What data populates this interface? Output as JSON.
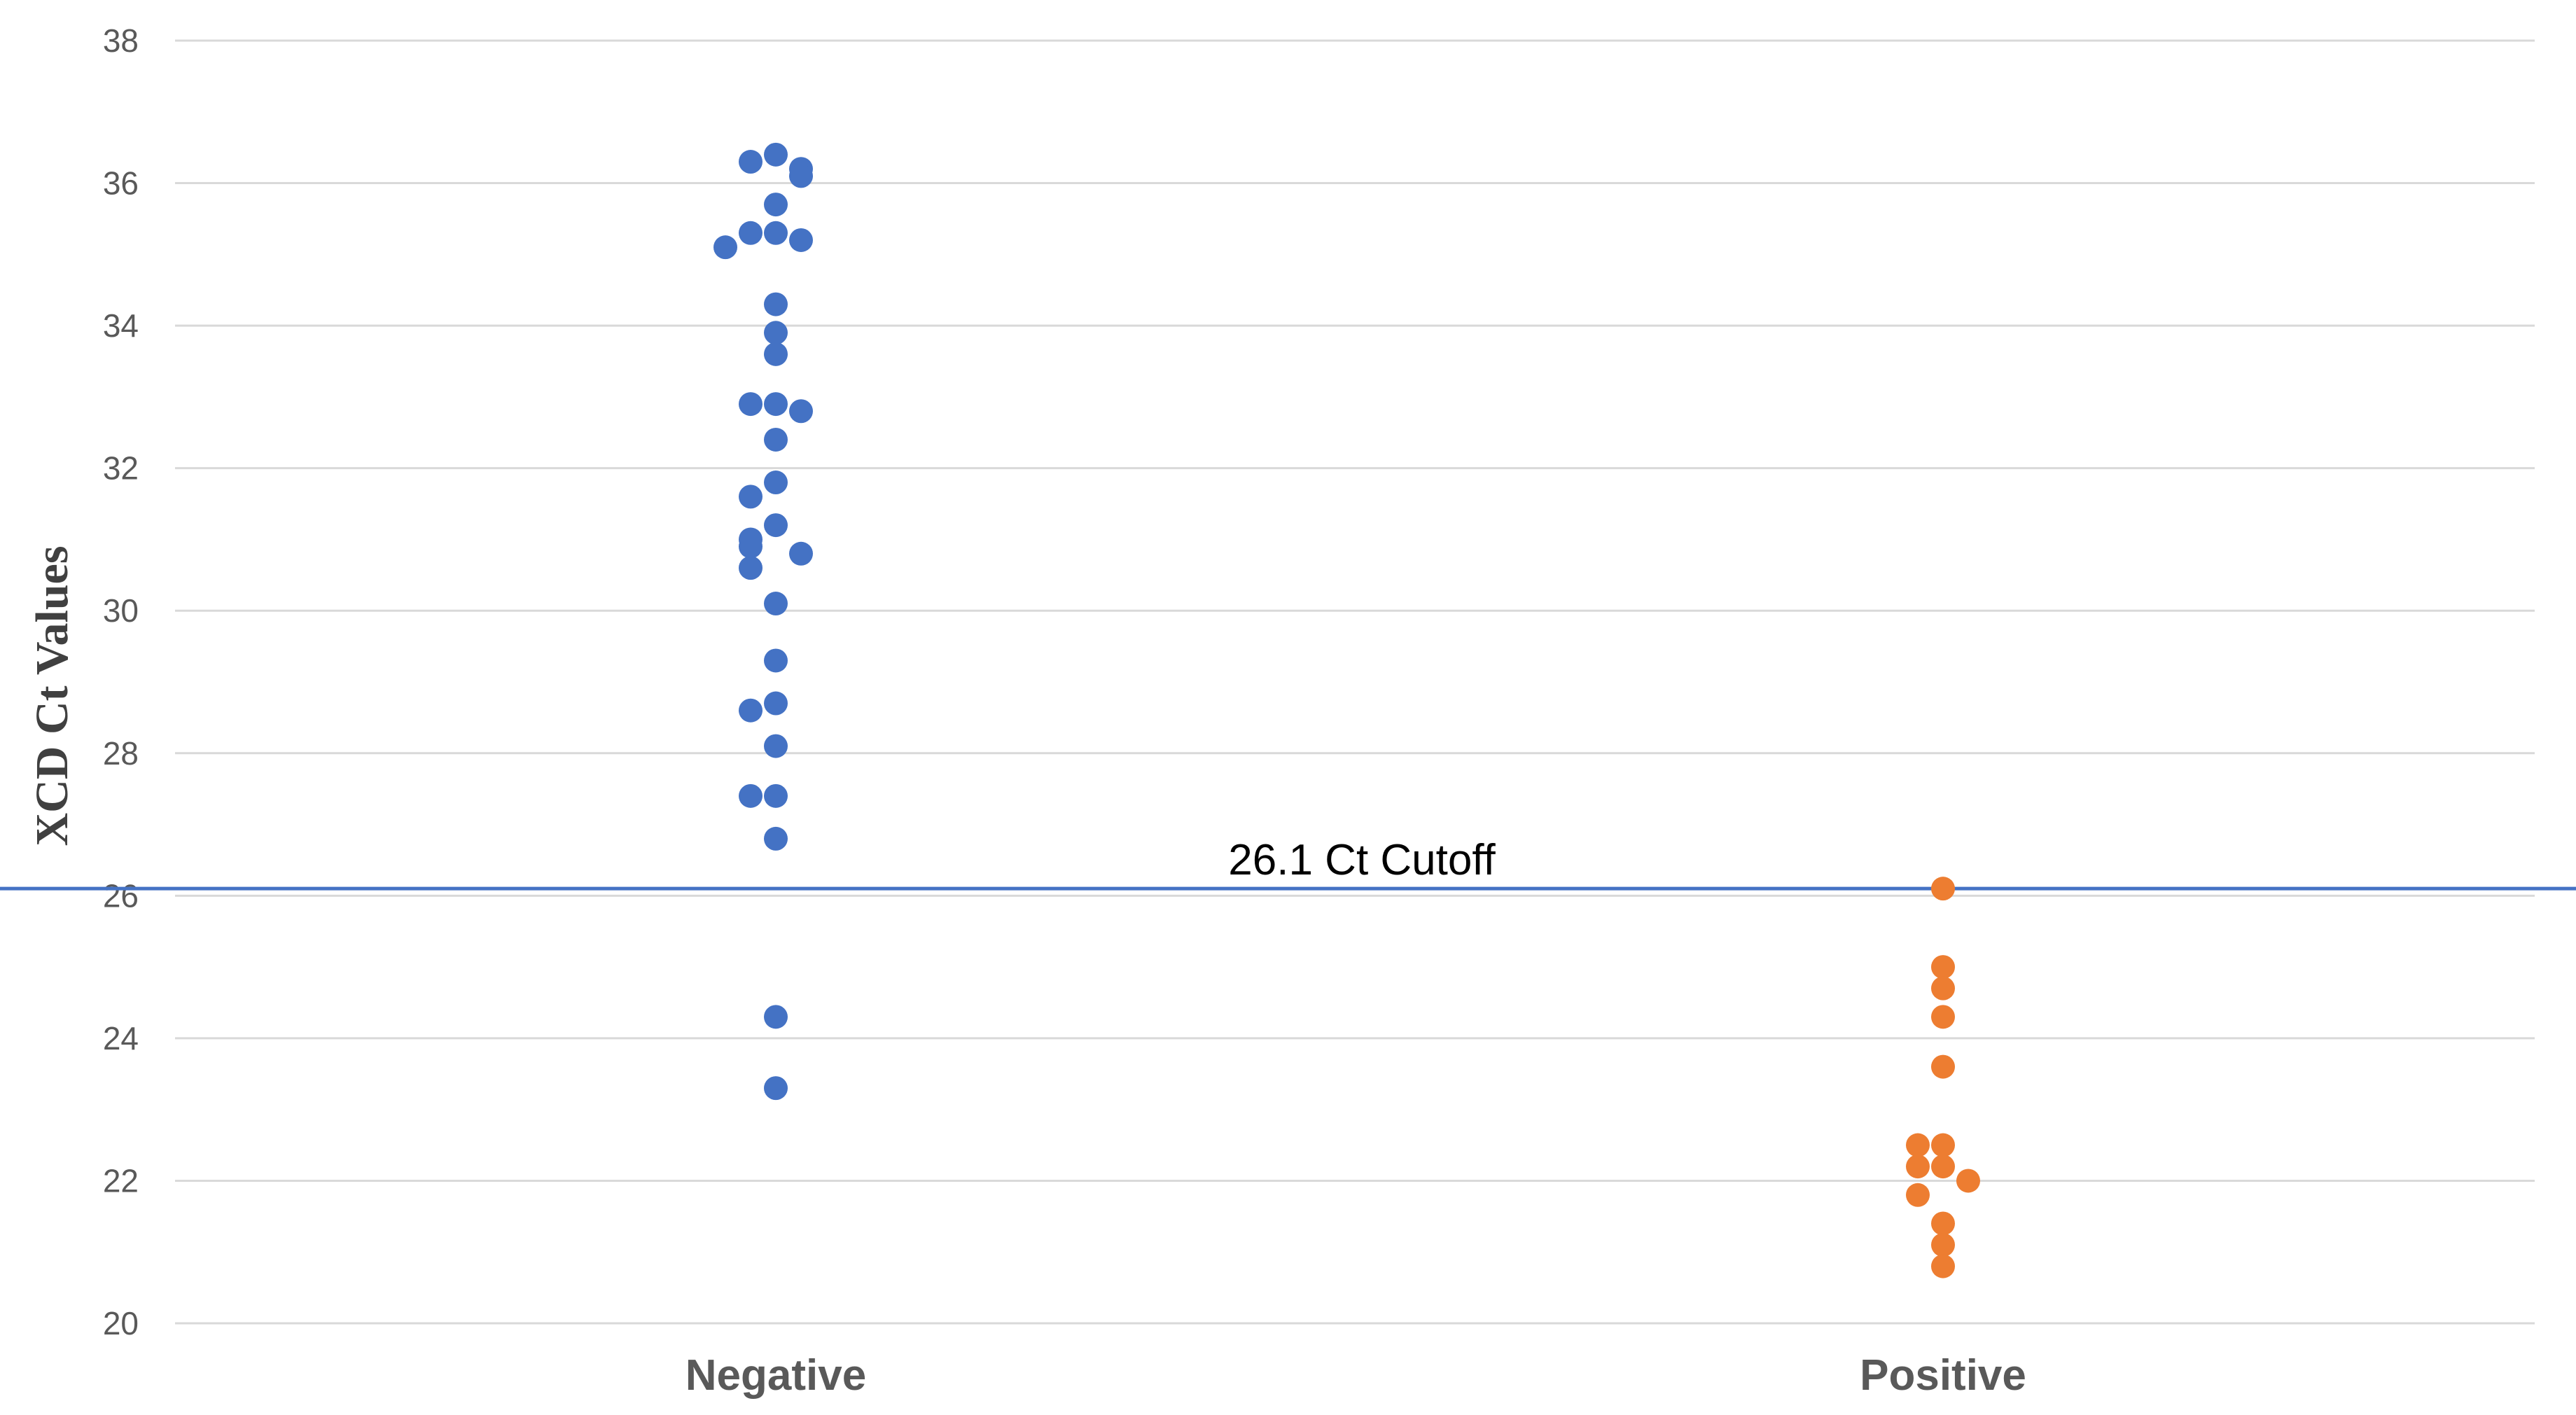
{
  "chart_data": {
    "type": "scatter",
    "ylabel": "XCD Ct Values",
    "ylim": [
      20,
      38
    ],
    "yticks": [
      20,
      22,
      24,
      26,
      28,
      30,
      32,
      34,
      36,
      38
    ],
    "categories": [
      "Negative",
      "Positive"
    ],
    "grid": true,
    "reference_line": {
      "y": 26.1,
      "label": "26.1 Ct Cutoff",
      "color": "#4472C4"
    },
    "series": [
      {
        "category": "Negative",
        "color": "#4472C4",
        "values": [
          36.4,
          36.3,
          36.2,
          36.1,
          35.7,
          35.3,
          35.3,
          35.2,
          35.1,
          34.3,
          33.9,
          33.6,
          32.9,
          32.9,
          32.8,
          32.4,
          31.8,
          31.6,
          31.2,
          31.0,
          30.9,
          30.8,
          30.6,
          30.1,
          29.3,
          28.7,
          28.6,
          28.1,
          27.4,
          27.4,
          26.8,
          24.3,
          23.3
        ]
      },
      {
        "category": "Positive",
        "color": "#ED7D31",
        "values": [
          26.1,
          25.0,
          24.7,
          24.3,
          23.6,
          22.5,
          22.5,
          22.2,
          22.2,
          22.0,
          21.8,
          21.4,
          21.1,
          20.8
        ]
      }
    ]
  }
}
